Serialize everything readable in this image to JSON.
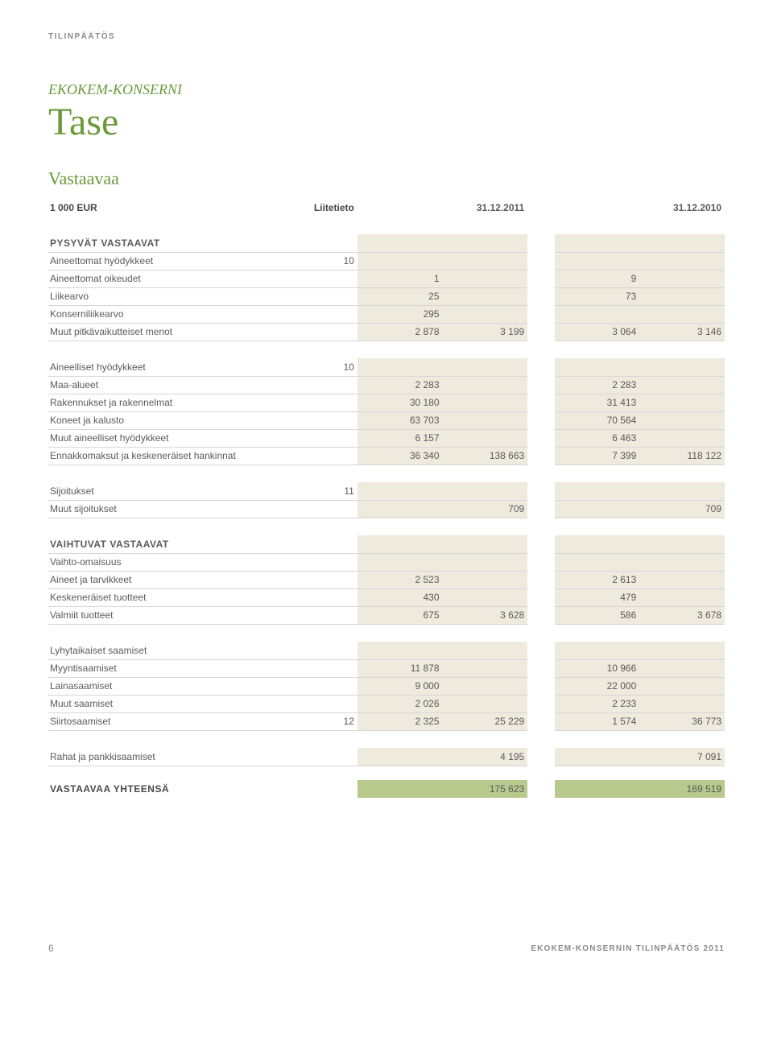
{
  "page_label": "TILINPÄÄTÖS",
  "subtitle": "EKOKEM-KONSERNI",
  "title": "Tase",
  "section_title": "Vastaavaa",
  "columns": {
    "unit": "1 000 EUR",
    "note": "Liitetieto",
    "date1": "31.12.2011",
    "date2": "31.12.2010"
  },
  "rows": [
    {
      "type": "spacer"
    },
    {
      "type": "group",
      "label": "PYSYVÄT VASTAAVAT"
    },
    {
      "type": "data",
      "label": "Aineettomat hyödykkeet",
      "note": "10"
    },
    {
      "type": "data",
      "label": "Aineettomat oikeudet",
      "v1": "1",
      "v3": "9"
    },
    {
      "type": "data",
      "label": "Liikearvo",
      "v1": "25",
      "v3": "73"
    },
    {
      "type": "data",
      "label": "Konserniliikearvo",
      "v1": "295",
      "v3": ""
    },
    {
      "type": "data",
      "label": "Muut pitkävaikutteiset menot",
      "v1": "2 878",
      "v2": "3 199",
      "v3": "3 064",
      "v4": "3 146"
    },
    {
      "type": "spacer"
    },
    {
      "type": "data",
      "label": "Aineelliset hyödykkeet",
      "note": "10"
    },
    {
      "type": "data",
      "label": "Maa-alueet",
      "v1": "2 283",
      "v3": "2 283"
    },
    {
      "type": "data",
      "label": "Rakennukset ja rakennelmat",
      "v1": "30 180",
      "v3": "31 413"
    },
    {
      "type": "data",
      "label": "Koneet ja kalusto",
      "v1": "63 703",
      "v3": "70 564"
    },
    {
      "type": "data",
      "label": "Muut aineelliset hyödykkeet",
      "v1": "6 157",
      "v3": "6 463"
    },
    {
      "type": "data",
      "label": "Ennakkomaksut ja keskeneräiset hankinnat",
      "v1": "36 340",
      "v2": "138 663",
      "v3": "7 399",
      "v4": "118 122"
    },
    {
      "type": "spacer"
    },
    {
      "type": "data",
      "label": "Sijoitukset",
      "note": "11"
    },
    {
      "type": "data",
      "label": "Muut sijoitukset",
      "v2": "709",
      "v4": "709"
    },
    {
      "type": "spacer"
    },
    {
      "type": "group",
      "label": "VAIHTUVAT VASTAAVAT"
    },
    {
      "type": "sub",
      "label": "Vaihto-omaisuus"
    },
    {
      "type": "data",
      "label": "Aineet ja tarvikkeet",
      "v1": "2 523",
      "v3": "2 613"
    },
    {
      "type": "data",
      "label": "Keskeneräiset tuotteet",
      "v1": "430",
      "v3": "479"
    },
    {
      "type": "data",
      "label": "Valmiit tuotteet",
      "v1": "675",
      "v2": "3 628",
      "v3": "586",
      "v4": "3 678"
    },
    {
      "type": "spacer"
    },
    {
      "type": "sub",
      "label": "Lyhytaikaiset saamiset"
    },
    {
      "type": "data",
      "label": "Myyntisaamiset",
      "v1": "11 878",
      "v3": "10 966"
    },
    {
      "type": "data",
      "label": "Lainasaamiset",
      "v1": "9 000",
      "v3": "22 000"
    },
    {
      "type": "data",
      "label": "Muut saamiset",
      "v1": "2 026",
      "v3": "2 233"
    },
    {
      "type": "data",
      "label": "Siirtosaamiset",
      "note": "12",
      "v1": "2 325",
      "v2": "25 229",
      "v3": "1 574",
      "v4": "36 773"
    },
    {
      "type": "spacer"
    },
    {
      "type": "data",
      "label": "Rahat ja pankkisaamiset",
      "v2": "4 195",
      "v4": "7 091"
    },
    {
      "type": "spacer-narrow"
    },
    {
      "type": "total",
      "label": "VASTAAVAA YHTEENSÄ",
      "v2": "175 623",
      "v4": "169 519"
    }
  ],
  "footer": {
    "page_number": "6",
    "right_text": "EKOKEM-KONSERNIN TILINPÄÄTÖS 2011"
  },
  "colors": {
    "accent_green": "#6a9a3a",
    "shade_fill": "#efeade",
    "total_fill": "#b7c98c",
    "border": "#d6d6d6",
    "text_muted": "#8a8a8a",
    "text": "#5a5a5a"
  }
}
